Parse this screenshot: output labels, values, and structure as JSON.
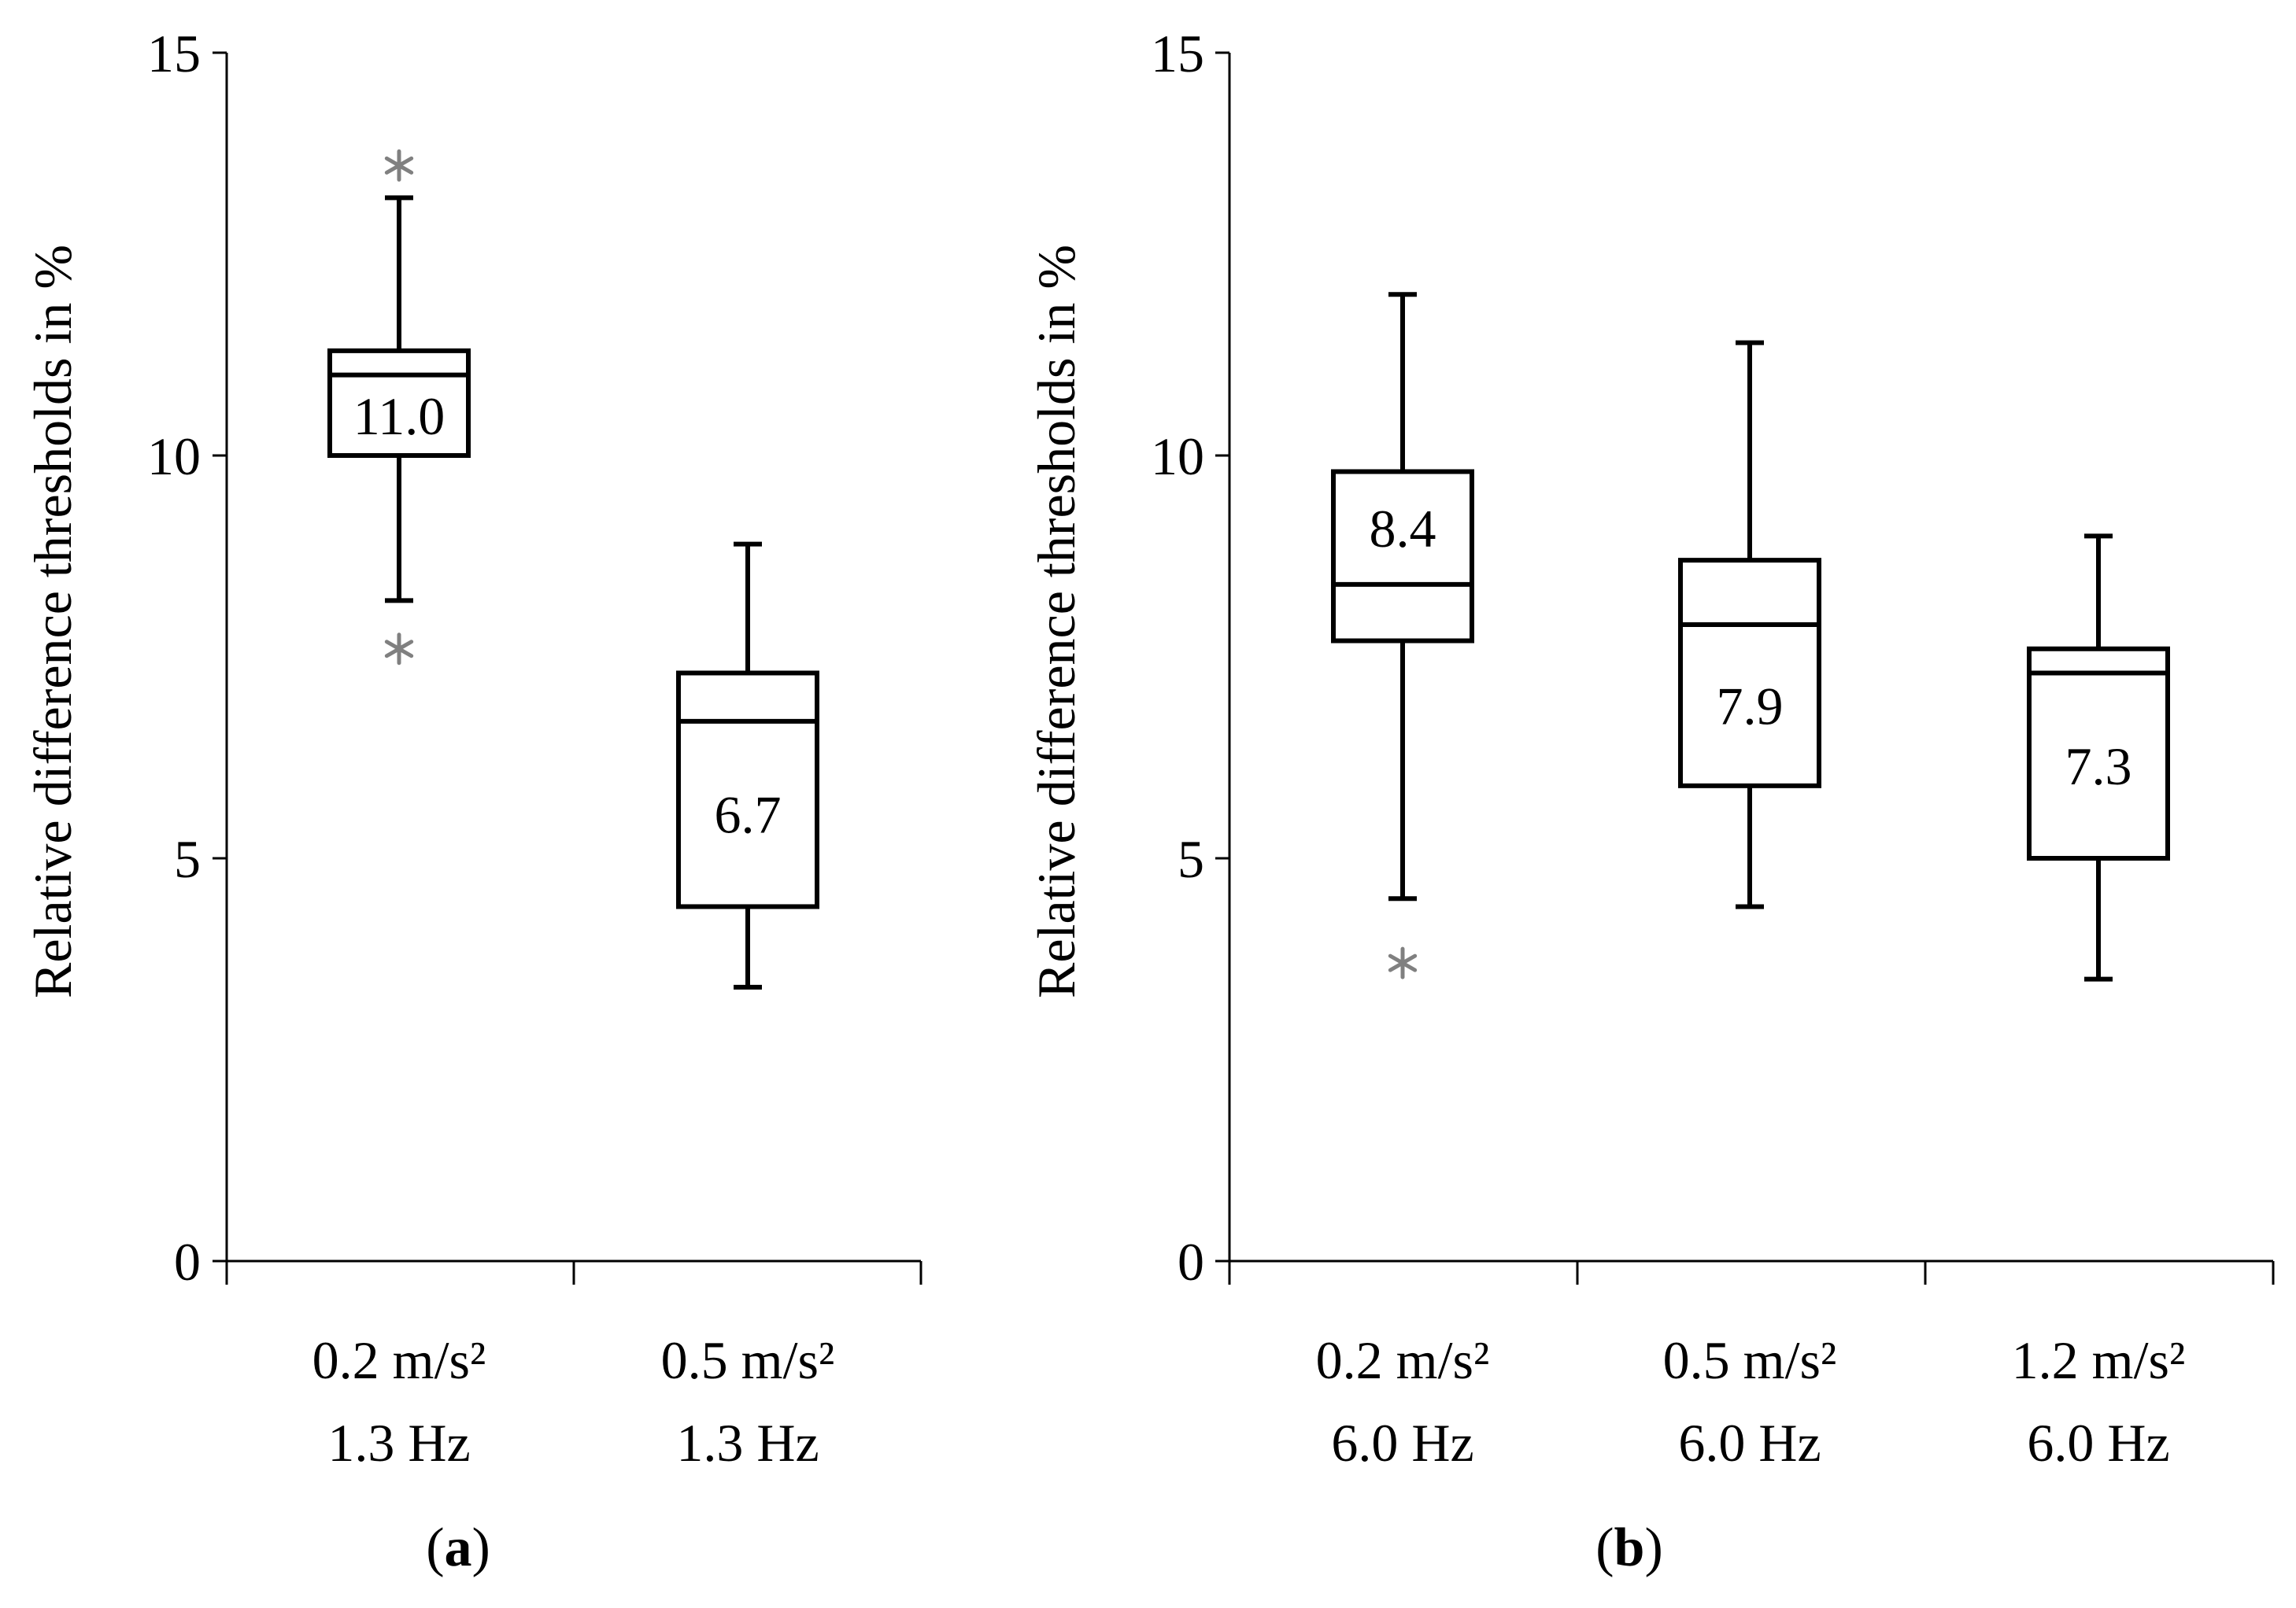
{
  "colors": {
    "box_stroke": "#000000",
    "axis": "#000000",
    "outlier": "#808080",
    "background": "#ffffff"
  },
  "chart_data": [
    {
      "type": "box",
      "panel_label": "a",
      "ylabel": "Relative difference thresholds in %",
      "ylim": [
        0,
        15
      ],
      "yticks": [
        "0",
        "5",
        "10",
        "15"
      ],
      "categories": [
        {
          "line1": "0.2 m/s²",
          "line2": "1.3 Hz"
        },
        {
          "line1": "0.5 m/s²",
          "line2": "1.3 Hz"
        }
      ],
      "boxes": [
        {
          "whisker_low": 8.2,
          "q1": 10.0,
          "median": 11.0,
          "q3": 11.3,
          "whisker_high": 13.2,
          "median_label": "11.0",
          "outliers": [
            13.6,
            7.6
          ]
        },
        {
          "whisker_low": 3.4,
          "q1": 4.4,
          "median": 6.7,
          "q3": 7.3,
          "whisker_high": 8.9,
          "median_label": "6.7",
          "outliers": []
        }
      ]
    },
    {
      "type": "box",
      "panel_label": "b",
      "ylabel": "Relative difference thresholds in %",
      "ylim": [
        0,
        15
      ],
      "yticks": [
        "0",
        "5",
        "10",
        "15"
      ],
      "categories": [
        {
          "line1": "0.2 m/s²",
          "line2": "6.0 Hz"
        },
        {
          "line1": "0.5 m/s²",
          "line2": "6.0 Hz"
        },
        {
          "line1": "1.2 m/s²",
          "line2": "6.0 Hz"
        }
      ],
      "boxes": [
        {
          "whisker_low": 4.5,
          "q1": 7.7,
          "median": 8.4,
          "q3": 9.8,
          "whisker_high": 12.0,
          "median_label": "8.4",
          "outliers": [
            3.7
          ]
        },
        {
          "whisker_low": 4.4,
          "q1": 5.9,
          "median": 7.9,
          "q3": 8.7,
          "whisker_high": 11.4,
          "median_label": "7.9",
          "outliers": []
        },
        {
          "whisker_low": 3.5,
          "q1": 5.0,
          "median": 7.3,
          "q3": 7.6,
          "whisker_high": 9.0,
          "median_label": "7.3",
          "outliers": []
        }
      ]
    }
  ]
}
